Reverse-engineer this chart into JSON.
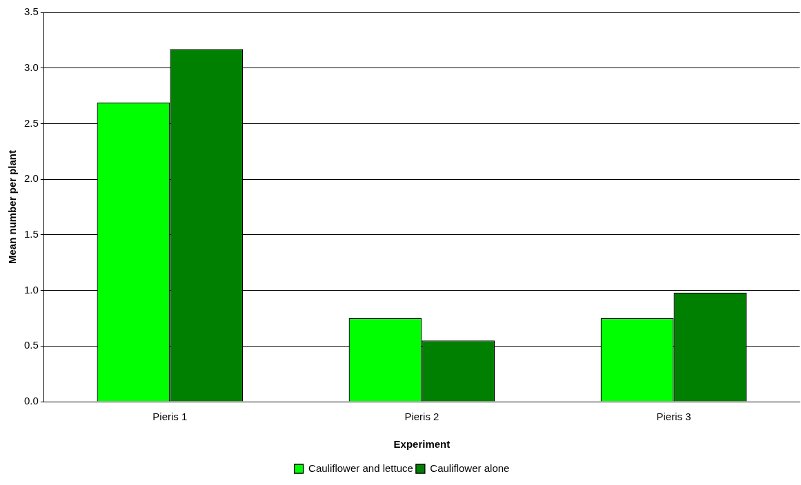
{
  "chart_data": {
    "type": "bar",
    "xlabel": "Experiment",
    "ylabel": "Mean number per plant",
    "categories": [
      "Pieris 1",
      "Pieris 2",
      "Pieris 3"
    ],
    "series": [
      {
        "name": "Cauliflower and lettuce",
        "color": "#00ff00",
        "values": [
          2.69,
          0.75,
          0.75
        ]
      },
      {
        "name": "Cauliflower alone",
        "color": "#008000",
        "values": [
          3.17,
          0.55,
          0.98
        ]
      }
    ],
    "ylim": [
      0,
      3.5
    ],
    "yticks": [
      {
        "value": 0,
        "label": "0.0"
      },
      {
        "value": 0.5,
        "label": "0.5"
      },
      {
        "value": 1,
        "label": "1.0"
      },
      {
        "value": 1.5,
        "label": "1.5"
      },
      {
        "value": 2,
        "label": "2.0"
      },
      {
        "value": 2.5,
        "label": "2.5"
      },
      {
        "value": 3,
        "label": "3.0"
      },
      {
        "value": 3.5,
        "label": "3.5"
      }
    ],
    "grid": "y",
    "legend": "bottom"
  }
}
